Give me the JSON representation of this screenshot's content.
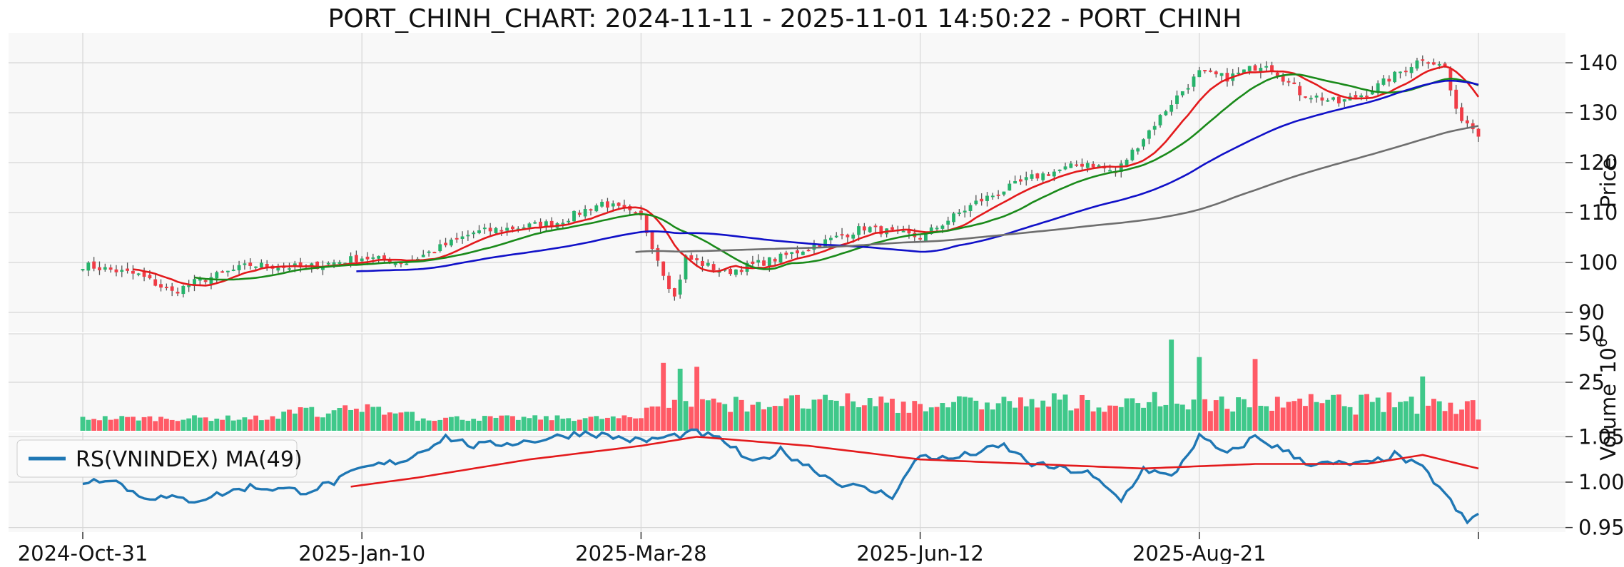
{
  "chart_data": {
    "title": "PORT_CHINH_CHART: 2024-11-11 - 2025-11-01 14:50:22 - PORT_CHINH",
    "type": "candlestick",
    "colors": {
      "up": "#26b36b",
      "down": "#f03c46",
      "ma_short": "#e31a1c",
      "ma_mid": "#1a8a1a",
      "ma_long": "#1010c8",
      "ma_vlong": "#6e6e6e",
      "rs": "#1f77b4",
      "rs_ma": "#e31a1c",
      "panel_bg": "#f8f8f8",
      "grid": "#d6d6d6"
    },
    "x_axis": {
      "tick_labels": [
        "2024-Oct-31",
        "2025-Jan-10",
        "2025-Mar-28",
        "2025-Jun-12",
        "2025-Aug-21",
        ""
      ],
      "tick_index": [
        0,
        50,
        100,
        150,
        200,
        250
      ],
      "n_bars": 251
    },
    "price_panel": {
      "ylabel": "Price",
      "ylim": [
        86,
        146
      ],
      "yticks": [
        90,
        100,
        110,
        120,
        130,
        140
      ],
      "close_anchors": [
        [
          0,
          99.5
        ],
        [
          10,
          97.5
        ],
        [
          16,
          94
        ],
        [
          20,
          96
        ],
        [
          30,
          99.5
        ],
        [
          40,
          99
        ],
        [
          50,
          101
        ],
        [
          58,
          100
        ],
        [
          70,
          106
        ],
        [
          85,
          108
        ],
        [
          93,
          112
        ],
        [
          100,
          109
        ],
        [
          104,
          98
        ],
        [
          106,
          93
        ],
        [
          108,
          101
        ],
        [
          115,
          98
        ],
        [
          125,
          101
        ],
        [
          130,
          103
        ],
        [
          140,
          107
        ],
        [
          150,
          105
        ],
        [
          160,
          112
        ],
        [
          170,
          117
        ],
        [
          180,
          120
        ],
        [
          185,
          118
        ],
        [
          195,
          132
        ],
        [
          200,
          138
        ],
        [
          205,
          137
        ],
        [
          212,
          140
        ],
        [
          218,
          134
        ],
        [
          225,
          132
        ],
        [
          230,
          134
        ],
        [
          240,
          141
        ],
        [
          244,
          139
        ],
        [
          246,
          130
        ],
        [
          250,
          126
        ]
      ],
      "ma_series": [
        {
          "key": "ma_short",
          "start": 9,
          "period": 10
        },
        {
          "key": "ma_mid",
          "start": 20,
          "period": 20
        },
        {
          "key": "ma_long",
          "start": 49,
          "period": 50
        },
        {
          "key": "ma_vlong",
          "start": 99,
          "period": 100
        }
      ]
    },
    "volume_panel": {
      "ylabel": "Volume",
      "scale_label": "10",
      "scale_exponent": "6",
      "ylim": [
        0,
        50
      ],
      "yticks": [
        25,
        50
      ],
      "spike_anchors": [
        [
          104,
          35
        ],
        [
          107,
          32
        ],
        [
          110,
          33
        ],
        [
          195,
          47
        ],
        [
          200,
          38
        ],
        [
          210,
          37
        ],
        [
          240,
          28
        ]
      ]
    },
    "rs_panel": {
      "legend_label": "RS(VNINDEX) MA(49)",
      "ylim": [
        0.945,
        1.055
      ],
      "yticks": [
        0.95,
        1.0,
        1.05
      ],
      "rs_anchors": [
        [
          0,
          1.0
        ],
        [
          5,
          1.005
        ],
        [
          10,
          0.985
        ],
        [
          20,
          0.98
        ],
        [
          30,
          0.995
        ],
        [
          40,
          0.99
        ],
        [
          45,
          1.0
        ],
        [
          50,
          1.015
        ],
        [
          58,
          1.025
        ],
        [
          65,
          1.05
        ],
        [
          70,
          1.04
        ],
        [
          80,
          1.045
        ],
        [
          90,
          1.055
        ],
        [
          100,
          1.045
        ],
        [
          110,
          1.055
        ],
        [
          115,
          1.045
        ],
        [
          120,
          1.02
        ],
        [
          125,
          1.035
        ],
        [
          135,
          1.0
        ],
        [
          145,
          0.985
        ],
        [
          150,
          1.03
        ],
        [
          155,
          1.025
        ],
        [
          165,
          1.04
        ],
        [
          170,
          1.02
        ],
        [
          180,
          1.01
        ],
        [
          186,
          0.98
        ],
        [
          190,
          1.015
        ],
        [
          195,
          1.005
        ],
        [
          200,
          1.05
        ],
        [
          205,
          1.03
        ],
        [
          210,
          1.05
        ],
        [
          220,
          1.02
        ],
        [
          230,
          1.02
        ],
        [
          235,
          1.03
        ],
        [
          240,
          1.015
        ],
        [
          243,
          0.995
        ],
        [
          246,
          0.97
        ],
        [
          248,
          0.955
        ],
        [
          250,
          0.965
        ]
      ],
      "ma_anchors": [
        [
          48,
          0.995
        ],
        [
          60,
          1.005
        ],
        [
          80,
          1.025
        ],
        [
          100,
          1.04
        ],
        [
          110,
          1.05
        ],
        [
          130,
          1.04
        ],
        [
          150,
          1.025
        ],
        [
          170,
          1.02
        ],
        [
          190,
          1.015
        ],
        [
          210,
          1.02
        ],
        [
          230,
          1.02
        ],
        [
          240,
          1.03
        ],
        [
          250,
          1.015
        ]
      ]
    }
  }
}
